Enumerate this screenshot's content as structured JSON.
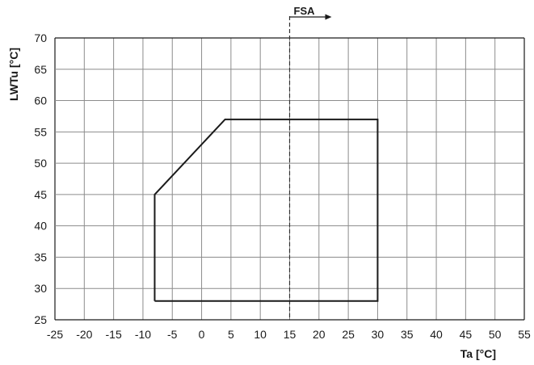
{
  "chart_data": {
    "type": "line",
    "title": "",
    "xlabel": "Ta [°C]",
    "ylabel": "LWTu [°C]",
    "xlim": [
      -25,
      55
    ],
    "ylim": [
      25,
      70
    ],
    "x_ticks": [
      -25,
      -20,
      -15,
      -10,
      -5,
      0,
      5,
      10,
      15,
      20,
      25,
      30,
      35,
      40,
      45,
      50,
      55
    ],
    "y_ticks": [
      25,
      30,
      35,
      40,
      45,
      50,
      55,
      60,
      65,
      70
    ],
    "grid": true,
    "series": [
      {
        "x": [
          -8,
          -8,
          4,
          30,
          30,
          -8
        ],
        "y": [
          28,
          45,
          57,
          57,
          28,
          28
        ],
        "color": "#1a1a1a"
      }
    ],
    "reference_line": {
      "x": 15,
      "style": "dashed",
      "label": "FSA"
    }
  }
}
